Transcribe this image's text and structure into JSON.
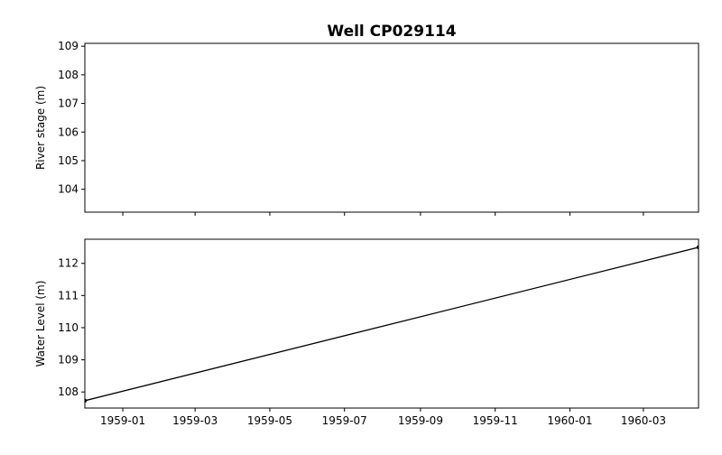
{
  "chart_data": {
    "type": "line",
    "title": "Well CP029114",
    "shared_x_axis": true,
    "x_tick_labels": [
      "1959-01",
      "1959-03",
      "1959-05",
      "1959-07",
      "1959-09",
      "1959-11",
      "1960-01",
      "1960-03"
    ],
    "xlim": [
      "1958-12-01",
      "1960-04-15"
    ],
    "panels": [
      {
        "id": "river-stage",
        "ylabel": "River stage (m)",
        "ylim": [
          103.2,
          109.1
        ],
        "y_ticks": [
          104,
          105,
          106,
          107,
          108,
          109
        ],
        "series": [
          {
            "x": [],
            "y": [],
            "color": "#000000"
          }
        ]
      },
      {
        "id": "water-level",
        "ylabel": "Water Level (m)",
        "ylim": [
          107.5,
          112.75
        ],
        "y_ticks": [
          108,
          109,
          110,
          111,
          112
        ],
        "series": [
          {
            "x": [
              "1958-12-01",
              "1960-04-15"
            ],
            "y": [
              107.73,
              112.5
            ],
            "color": "#000000",
            "marker": "point"
          }
        ]
      }
    ],
    "grid": false,
    "legend": "none"
  }
}
